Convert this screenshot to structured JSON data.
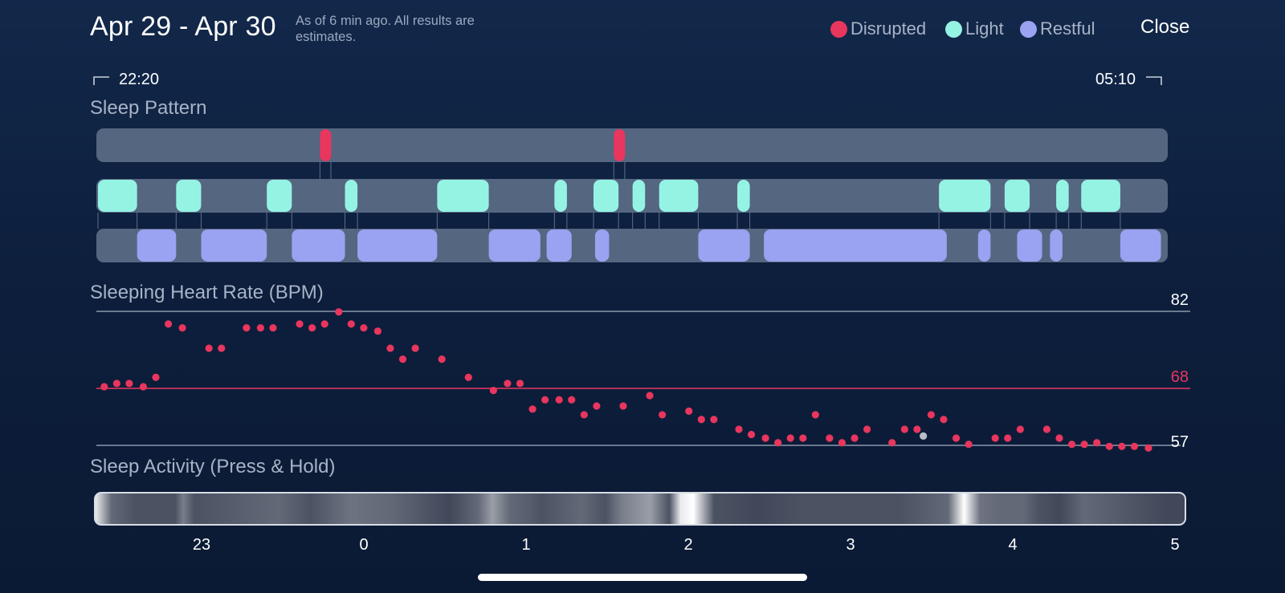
{
  "header": {
    "date_range": "Apr 29 - Apr 30",
    "note": "As of 6 min ago. All results are estimates.",
    "legend": [
      {
        "label": "Disrupted",
        "color": "#e8365e"
      },
      {
        "label": "Light",
        "color": "#95f3e4"
      },
      {
        "label": "Restful",
        "color": "#9aa2f2"
      }
    ],
    "close_label": "Close"
  },
  "timeline": {
    "start": "22:20",
    "end": "05:10"
  },
  "sleep_pattern": {
    "title": "Sleep Pattern",
    "track_color": "#556680",
    "disrupted": [
      [
        1.42,
        1.49
      ],
      [
        3.3,
        3.37
      ]
    ],
    "light": [
      [
        0.0,
        0.25
      ],
      [
        0.5,
        0.66
      ],
      [
        1.08,
        1.24
      ],
      [
        1.58,
        1.66
      ],
      [
        2.17,
        2.5
      ],
      [
        2.92,
        3.0
      ],
      [
        3.17,
        3.33
      ],
      [
        3.42,
        3.5
      ],
      [
        3.59,
        3.84
      ],
      [
        4.09,
        4.17
      ],
      [
        5.38,
        5.71
      ],
      [
        5.8,
        5.96
      ],
      [
        6.13,
        6.21
      ],
      [
        6.29,
        6.54
      ]
    ],
    "restful": [
      [
        0.25,
        0.5
      ],
      [
        0.66,
        1.08
      ],
      [
        1.24,
        1.58
      ],
      [
        1.66,
        2.17
      ],
      [
        2.5,
        2.83
      ],
      [
        2.87,
        3.03
      ],
      [
        3.18,
        3.27
      ],
      [
        3.84,
        4.17
      ],
      [
        4.26,
        5.43
      ],
      [
        5.63,
        5.71
      ],
      [
        5.88,
        6.04
      ],
      [
        6.09,
        6.17
      ],
      [
        6.54,
        6.8
      ]
    ]
  },
  "heart_rate": {
    "title": "Sleeping Heart Rate (BPM)",
    "max_label": "82",
    "avg_label": "68",
    "min_label": "57",
    "min": 57,
    "avg": 68,
    "max": 82,
    "point_color": "#e8365e",
    "samples": [
      [
        0.04,
        68.3
      ],
      [
        0.12,
        68.9
      ],
      [
        0.2,
        68.9
      ],
      [
        0.29,
        68.3
      ],
      [
        0.37,
        70.0
      ],
      [
        0.45,
        79.7
      ],
      [
        0.54,
        79.0
      ],
      [
        0.71,
        75.3
      ],
      [
        0.79,
        75.3
      ],
      [
        0.95,
        79.0
      ],
      [
        1.04,
        79.0
      ],
      [
        1.12,
        79.0
      ],
      [
        1.29,
        79.7
      ],
      [
        1.37,
        79.0
      ],
      [
        1.45,
        79.7
      ],
      [
        1.54,
        81.9
      ],
      [
        1.62,
        79.7
      ],
      [
        1.7,
        79.0
      ],
      [
        1.79,
        78.4
      ],
      [
        1.87,
        75.3
      ],
      [
        1.95,
        73.3
      ],
      [
        2.03,
        75.3
      ],
      [
        2.2,
        73.3
      ],
      [
        2.37,
        70.0
      ],
      [
        2.53,
        67.6
      ],
      [
        2.62,
        68.9
      ],
      [
        2.7,
        68.9
      ],
      [
        2.78,
        64.0
      ],
      [
        2.86,
        65.8
      ],
      [
        2.95,
        65.8
      ],
      [
        3.03,
        65.8
      ],
      [
        3.11,
        62.9
      ],
      [
        3.19,
        64.6
      ],
      [
        3.36,
        64.6
      ],
      [
        3.53,
        66.6
      ],
      [
        3.61,
        62.9
      ],
      [
        3.78,
        63.6
      ],
      [
        3.86,
        62.0
      ],
      [
        3.94,
        62.0
      ],
      [
        4.1,
        60.1
      ],
      [
        4.18,
        59.1
      ],
      [
        4.27,
        58.4
      ],
      [
        4.35,
        57.5
      ],
      [
        4.43,
        58.4
      ],
      [
        4.51,
        58.4
      ],
      [
        4.59,
        62.9
      ],
      [
        4.68,
        58.4
      ],
      [
        4.76,
        57.5
      ],
      [
        4.84,
        58.4
      ],
      [
        4.92,
        60.1
      ],
      [
        5.08,
        57.5
      ],
      [
        5.16,
        60.1
      ],
      [
        5.24,
        60.1
      ],
      [
        5.33,
        62.9
      ],
      [
        5.41,
        62.0
      ],
      [
        5.49,
        58.4
      ],
      [
        5.57,
        57.2
      ],
      [
        5.74,
        58.4
      ],
      [
        5.82,
        58.4
      ],
      [
        5.9,
        60.1
      ],
      [
        6.07,
        60.1
      ],
      [
        6.15,
        58.4
      ],
      [
        6.23,
        57.2
      ],
      [
        6.31,
        57.2
      ],
      [
        6.39,
        57.5
      ],
      [
        6.47,
        56.8
      ],
      [
        6.55,
        56.8
      ],
      [
        6.63,
        56.8
      ],
      [
        6.72,
        56.5
      ]
    ],
    "outlier": {
      "t": 5.28,
      "bpm": 58.8,
      "color": "#b9bec8"
    }
  },
  "sleep_activity": {
    "title": "Sleep Activity (Press & Hold)",
    "ticks": [
      "23",
      "0",
      "1",
      "2",
      "3",
      "4",
      "5"
    ],
    "tick_times": [
      0.667,
      1.667,
      2.667,
      3.667,
      4.667,
      5.667,
      6.667
    ],
    "intensity": [
      {
        "t": 0.0,
        "v": 0.9
      },
      {
        "t": 0.1,
        "v": 0.3
      },
      {
        "t": 0.25,
        "v": 0.2
      },
      {
        "t": 0.5,
        "v": 0.2
      },
      {
        "t": 0.55,
        "v": 0.4
      },
      {
        "t": 0.62,
        "v": 0.2
      },
      {
        "t": 1.15,
        "v": 0.3
      },
      {
        "t": 1.35,
        "v": 0.2
      },
      {
        "t": 1.6,
        "v": 0.35
      },
      {
        "t": 1.85,
        "v": 0.3
      },
      {
        "t": 2.22,
        "v": 0.15
      },
      {
        "t": 2.4,
        "v": 0.3
      },
      {
        "t": 2.49,
        "v": 0.55
      },
      {
        "t": 2.6,
        "v": 0.3
      },
      {
        "t": 2.72,
        "v": 0.25
      },
      {
        "t": 2.8,
        "v": 0.2
      },
      {
        "t": 3.05,
        "v": 0.3
      },
      {
        "t": 3.2,
        "v": 0.2
      },
      {
        "t": 3.3,
        "v": 0.4
      },
      {
        "t": 3.48,
        "v": 0.55
      },
      {
        "t": 3.6,
        "v": 0.2
      },
      {
        "t": 3.67,
        "v": 0.9
      },
      {
        "t": 3.75,
        "v": 1.0
      },
      {
        "t": 3.88,
        "v": 0.2
      },
      {
        "t": 4.15,
        "v": 0.15
      },
      {
        "t": 4.45,
        "v": 0.2
      },
      {
        "t": 4.9,
        "v": 0.2
      },
      {
        "t": 5.05,
        "v": 0.2
      },
      {
        "t": 5.35,
        "v": 0.3
      },
      {
        "t": 5.45,
        "v": 1.0
      },
      {
        "t": 5.55,
        "v": 0.35
      },
      {
        "t": 5.68,
        "v": 0.3
      },
      {
        "t": 5.82,
        "v": 0.3
      },
      {
        "t": 5.92,
        "v": 0.2
      },
      {
        "t": 6.05,
        "v": 0.15
      },
      {
        "t": 6.2,
        "v": 0.3
      },
      {
        "t": 6.38,
        "v": 0.25
      },
      {
        "t": 6.55,
        "v": 0.2
      },
      {
        "t": 6.72,
        "v": 0.15
      }
    ]
  }
}
